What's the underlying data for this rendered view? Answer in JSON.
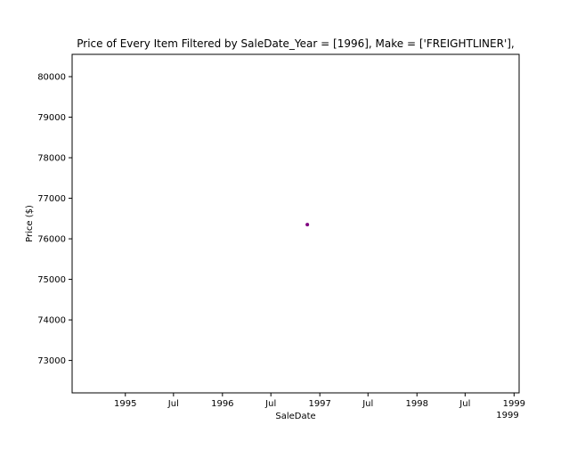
{
  "chart_data": {
    "type": "scatter",
    "title": "Price of Every Item Filtered by SaleDate_Year = [1996], Make = ['FREIGHTLINER'],",
    "xlabel": "SaleDate",
    "ylabel": "Price ($)",
    "xlim": [
      "1994-06-15",
      "1999-01-20"
    ],
    "ylim": [
      72200,
      80550
    ],
    "x_ticks": [
      {
        "date": "1995-01-01",
        "label": "1995"
      },
      {
        "date": "1995-07-01",
        "label": "Jul"
      },
      {
        "date": "1996-01-01",
        "label": "1996"
      },
      {
        "date": "1996-07-01",
        "label": "Jul"
      },
      {
        "date": "1997-01-01",
        "label": "1997"
      },
      {
        "date": "1997-07-01",
        "label": "Jul"
      },
      {
        "date": "1998-01-01",
        "label": "1998"
      },
      {
        "date": "1998-07-01",
        "label": "Jul"
      },
      {
        "date": "1999-01-01",
        "label": "1999"
      }
    ],
    "x_offset_label": "1999",
    "y_ticks": [
      73000,
      74000,
      75000,
      76000,
      77000,
      78000,
      79000,
      80000
    ],
    "grid": false,
    "series": [
      {
        "color": "#800080",
        "points": [
          {
            "x": "1996-11-15",
            "y": 76350
          }
        ]
      }
    ]
  }
}
